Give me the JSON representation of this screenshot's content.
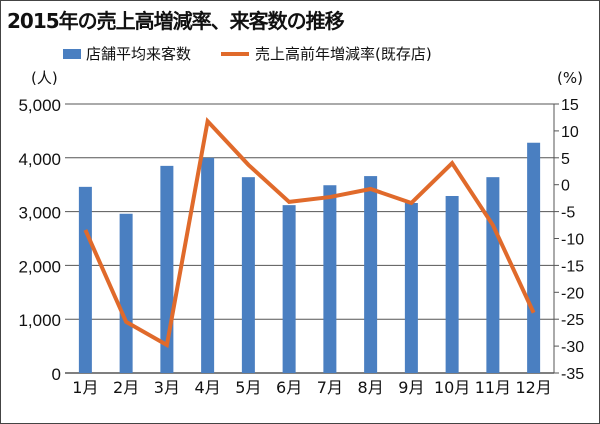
{
  "chart_data": {
    "type": "bar+line",
    "title": "2015年の売上高増減率、来客数の推移",
    "categories": [
      "1月",
      "2月",
      "3月",
      "4月",
      "5月",
      "6月",
      "7月",
      "8月",
      "9月",
      "10月",
      "11月",
      "12月"
    ],
    "series": [
      {
        "name": "店舗平均来客数",
        "type": "bar",
        "axis": "left",
        "color": "#4a7fc1",
        "values": [
          3460,
          2960,
          3850,
          4000,
          3640,
          3120,
          3490,
          3660,
          3160,
          3290,
          3640,
          4280
        ]
      },
      {
        "name": "売上高前年増減率(既存店)",
        "type": "line",
        "axis": "right",
        "color": "#e06a2b",
        "values": [
          -8.4,
          -25.5,
          -29.8,
          11.8,
          3.7,
          -3.2,
          -2.3,
          -0.8,
          -3.4,
          4.0,
          -7.5,
          -23.8
        ]
      }
    ],
    "left_axis": {
      "unit": "(人)",
      "ylim": [
        0,
        5000
      ],
      "ticks": [
        "0",
        "1,000",
        "2,000",
        "3,000",
        "4,000",
        "5,000"
      ]
    },
    "right_axis": {
      "unit": "(%)",
      "ylim": [
        -35,
        15
      ],
      "ticks": [
        "-35",
        "-30",
        "-25",
        "-20",
        "-15",
        "-10",
        "-5",
        "0",
        "5",
        "10",
        "15"
      ]
    },
    "grid": true,
    "legend_position": "top"
  }
}
